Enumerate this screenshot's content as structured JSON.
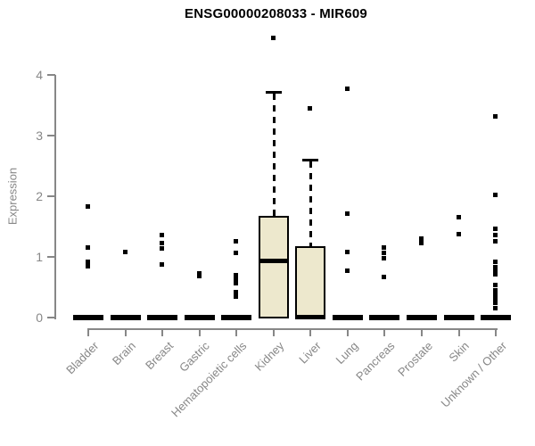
{
  "window": {
    "title": "ENSG00000208033 - MIR609"
  },
  "colors": {
    "background": "#ffffff",
    "box_fill": "#EDE8CD",
    "box_border": "#000000",
    "axis_gray": "#878787",
    "title_color": "#000000",
    "outlier_color": "#000000"
  },
  "chart_data": {
    "type": "boxplot",
    "title": "ENSG00000208033 - MIR609",
    "xlabel": "",
    "ylabel": "Expression",
    "ylim": [
      0,
      4.8
    ],
    "yticks": [
      0,
      1,
      2,
      3,
      4
    ],
    "grid": "off",
    "legend": "none",
    "categories": [
      "Bladder",
      "Brain",
      "Breast",
      "Gastric",
      "Hematopoietic cells",
      "Kidney",
      "Liver",
      "Lung",
      "Pancreas",
      "Prostate",
      "Skin",
      "Unknown / Other"
    ],
    "series": [
      {
        "category": "Bladder",
        "q1": 0,
        "median": 0,
        "q3": 0,
        "whisker_low": 0,
        "whisker_high": 0,
        "outliers": [
          1.84,
          1.16,
          0.93,
          0.85
        ]
      },
      {
        "category": "Brain",
        "q1": 0,
        "median": 0,
        "q3": 0,
        "whisker_low": 0,
        "whisker_high": 0,
        "outliers": [
          1.09
        ]
      },
      {
        "category": "Breast",
        "q1": 0,
        "median": 0,
        "q3": 0,
        "whisker_low": 0,
        "whisker_high": 0,
        "outliers": [
          1.37,
          1.24,
          1.15,
          0.88
        ]
      },
      {
        "category": "Gastric",
        "q1": 0,
        "median": 0,
        "q3": 0,
        "whisker_low": 0,
        "whisker_high": 0,
        "outliers": [
          0.74,
          0.69
        ]
      },
      {
        "category": "Hematopoietic cells",
        "q1": 0,
        "median": 0,
        "q3": 0,
        "whisker_low": 0,
        "whisker_high": 0,
        "outliers": [
          1.26,
          1.07,
          0.7,
          0.64,
          0.57,
          0.43,
          0.35
        ]
      },
      {
        "category": "Kidney",
        "q1": 0,
        "median": 0.94,
        "q3": 1.66,
        "whisker_low": 0,
        "whisker_high": 3.72,
        "outliers": [
          4.62
        ]
      },
      {
        "category": "Liver",
        "q1": 0,
        "median": 0.02,
        "q3": 1.16,
        "whisker_low": 0,
        "whisker_high": 2.6,
        "outliers": [
          3.45
        ]
      },
      {
        "category": "Lung",
        "q1": 0,
        "median": 0,
        "q3": 0,
        "whisker_low": 0,
        "whisker_high": 0,
        "outliers": [
          3.78,
          1.72,
          1.09,
          0.78
        ]
      },
      {
        "category": "Pancreas",
        "q1": 0,
        "median": 0,
        "q3": 0,
        "whisker_low": 0,
        "whisker_high": 0,
        "outliers": [
          1.16,
          1.07,
          0.99,
          0.68
        ]
      },
      {
        "category": "Prostate",
        "q1": 0,
        "median": 0,
        "q3": 0,
        "whisker_low": 0,
        "whisker_high": 0,
        "outliers": [
          1.31,
          1.24
        ]
      },
      {
        "category": "Skin",
        "q1": 0,
        "median": 0,
        "q3": 0,
        "whisker_low": 0,
        "whisker_high": 0,
        "outliers": [
          1.66,
          1.38
        ]
      },
      {
        "category": "Unknown / Other",
        "q1": 0,
        "median": 0,
        "q3": 0,
        "whisker_low": 0,
        "whisker_high": 0,
        "outliers": [
          3.32,
          2.03,
          1.47,
          1.37,
          1.26,
          0.92,
          0.84,
          0.76,
          0.72,
          0.54,
          0.46,
          0.38,
          0.33,
          0.25,
          0.16
        ]
      }
    ]
  }
}
